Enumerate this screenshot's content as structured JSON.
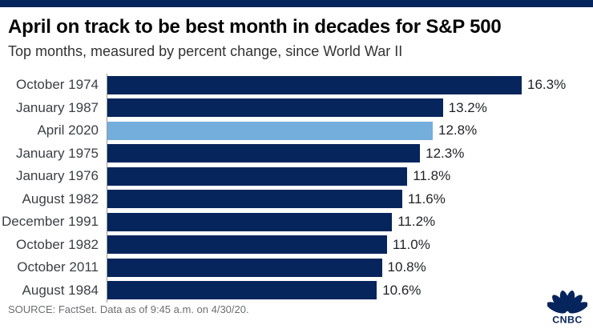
{
  "page": {
    "title": "April on track to be best month in decades for S&P 500",
    "subtitle": "Top months, measured by percent change, since World War II",
    "source_note": "SOURCE: FactSet. Data as of 9:45 a.m. on 4/30/20.",
    "logo_text": "CNBC",
    "logo_icon": "cnbc-peacock-icon"
  },
  "colors": {
    "top_band": "#06255C",
    "bar": "#06255C",
    "highlight_bar": "#74AEDD",
    "axis_line": "#999999",
    "logo": "#06255C"
  },
  "chart_data": {
    "type": "bar",
    "orientation": "horizontal",
    "title": "April on track to be best month in decades for S&P 500",
    "subtitle": "Top months, measured by percent change, since World War II",
    "xlabel": "",
    "ylabel": "",
    "xlim": [
      0,
      16.3
    ],
    "grid": false,
    "legend": "none",
    "categories": [
      "October 1974",
      "January 1987",
      "April 2020",
      "January 1975",
      "January 1976",
      "August 1982",
      "December 1991",
      "October 1982",
      "October 2011",
      "August 1984"
    ],
    "values": [
      16.3,
      13.2,
      12.8,
      12.3,
      11.8,
      11.6,
      11.2,
      11.0,
      10.8,
      10.6
    ],
    "value_labels": [
      "16.3%",
      "13.2%",
      "12.8%",
      "12.3%",
      "11.8%",
      "11.6%",
      "11.2%",
      "11.0%",
      "10.8%",
      "10.6%"
    ],
    "highlight_index": 2,
    "highlight_category": "April 2020"
  }
}
